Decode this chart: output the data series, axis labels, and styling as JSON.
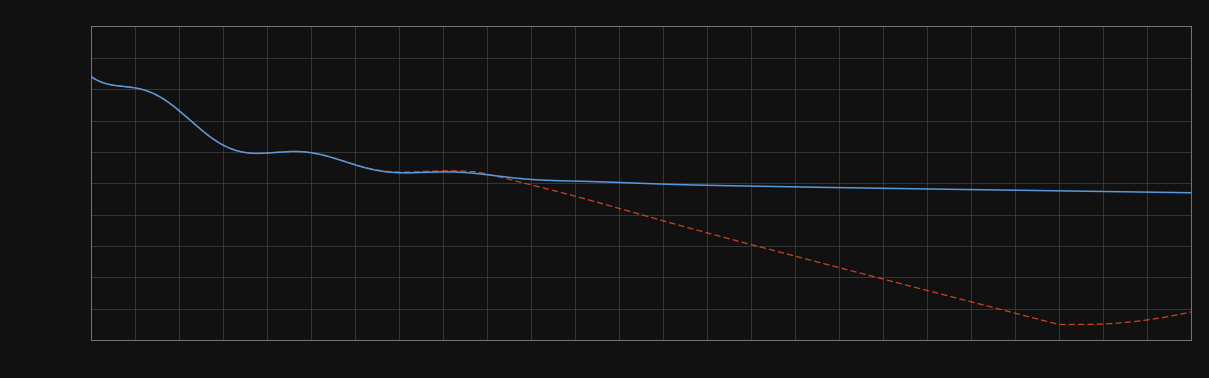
{
  "background_color": "#111111",
  "plot_bg_color": "#111111",
  "grid_color": "#444444",
  "axis_color": "#777777",
  "line1_color": "#5599dd",
  "line2_color": "#cc4422",
  "figsize": [
    12.09,
    3.78
  ],
  "dpi": 100,
  "xlim": [
    0,
    100
  ],
  "ylim": [
    0,
    10
  ],
  "n_grid_x": 25,
  "n_grid_y": 10
}
